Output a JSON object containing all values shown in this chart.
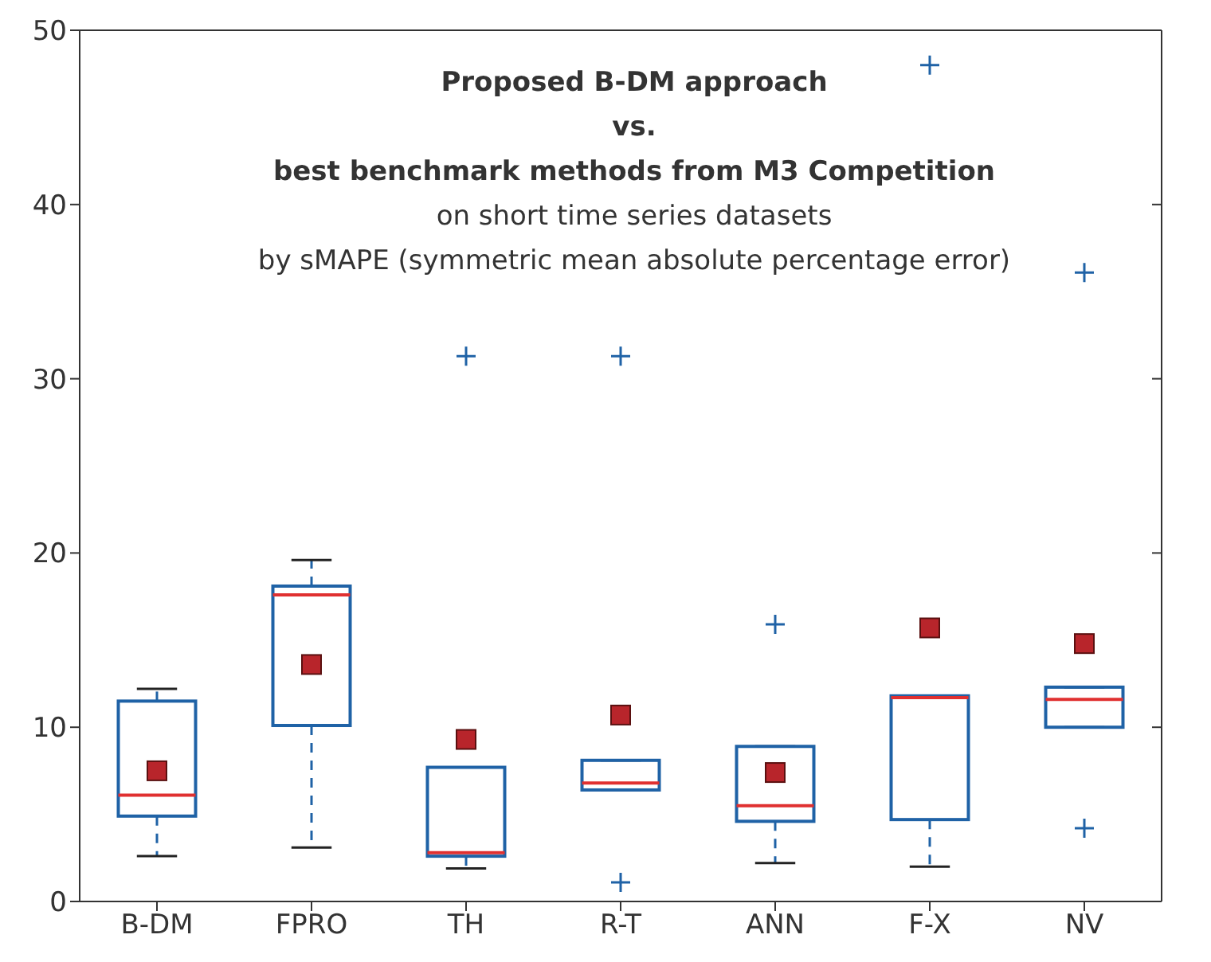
{
  "chart_data": {
    "type": "box",
    "title": "Proposed B-DM approach\nvs.\nbest benchmark methods from M3 Competition",
    "subtitle": "on short time series datasets\nby sMAPE (symmetric mean absolute percentage error)",
    "categories": [
      "B-DM",
      "FPRO",
      "TH",
      "R-T",
      "ANN",
      "F-X",
      "NV"
    ],
    "color": "#1f62a6",
    "line_style": "dashed",
    "marker": "square",
    "ylim": [
      0,
      50
    ],
    "yticks": [
      0,
      10,
      20,
      30,
      40,
      50
    ],
    "boxes": [
      {
        "low": 2.6,
        "q1": 4.9,
        "median": 6.1,
        "q3": 11.5,
        "high": 12.2,
        "mean": 7.5
      },
      {
        "low": 3.1,
        "q1": 10.1,
        "median": 17.6,
        "q3": 18.1,
        "high": 19.6,
        "mean": 13.6
      },
      {
        "low": 1.9,
        "q1": 2.6,
        "median": 2.8,
        "q3": 7.7,
        "high": 7.7,
        "mean": 9.3,
        "outliers": [
          31.3
        ]
      },
      {
        "low": 6.4,
        "q1": 6.4,
        "median": 6.8,
        "q3": 8.1,
        "high": 8.1,
        "mean": 10.7,
        "outliers": [
          31.3,
          1.1
        ]
      },
      {
        "low": 2.2,
        "q1": 4.6,
        "median": 5.5,
        "q3": 8.9,
        "high": 8.9,
        "mean": 7.4,
        "outliers": [
          15.9
        ]
      },
      {
        "low": 2.0,
        "q1": 4.7,
        "median": 11.7,
        "q3": 11.8,
        "high": 11.8,
        "mean": 15.7,
        "outliers": [
          48.0
        ]
      },
      {
        "low": 10.0,
        "q1": 10.0,
        "median": 11.6,
        "q3": 12.3,
        "high": 12.3,
        "mean": 14.8,
        "outliers": [
          36.1,
          4.2
        ]
      }
    ]
  }
}
